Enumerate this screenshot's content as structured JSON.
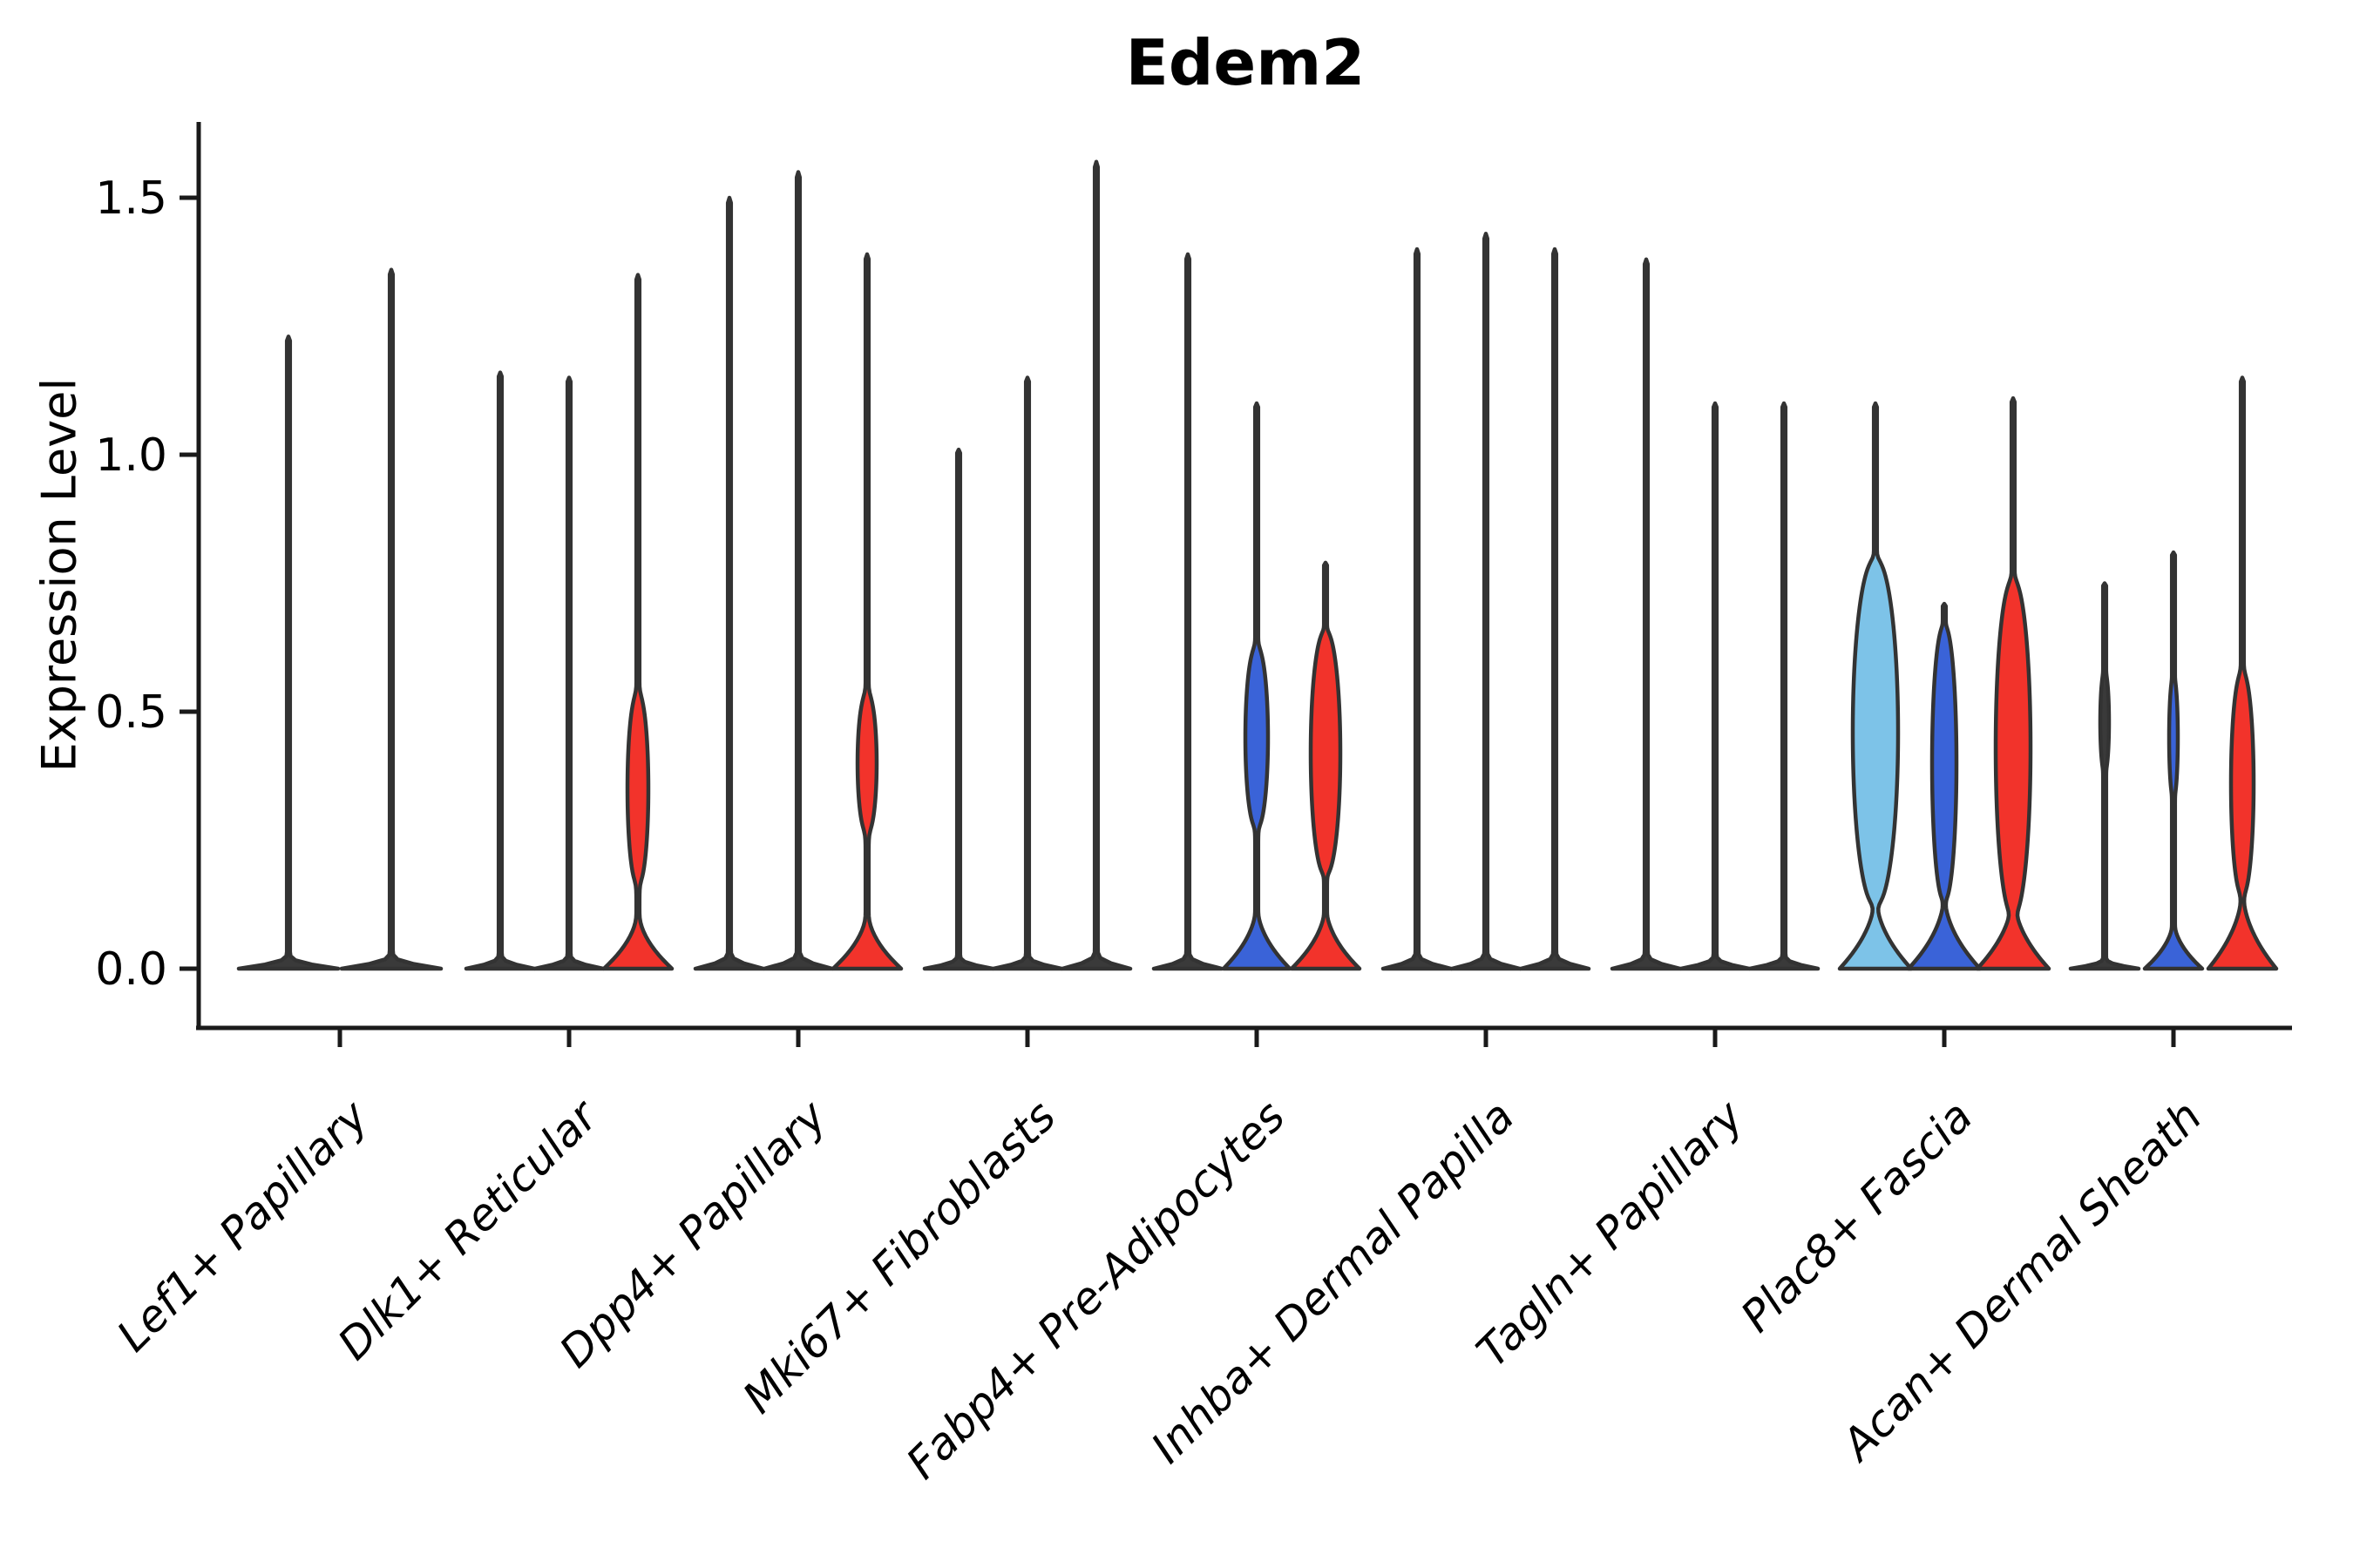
{
  "chart_data": {
    "type": "violin",
    "title": "Edem2",
    "ylabel": "Expression Level",
    "xlabel": "",
    "yticks": [
      0.0,
      0.5,
      1.0,
      1.5
    ],
    "ylim": [
      -0.06,
      1.65
    ],
    "grid": false,
    "legend": "none",
    "axis_color": "#1a1a1a",
    "outline_color": "#333333",
    "palette": {
      "light_blue": "#7dc3e8",
      "blue": "#3a63d8",
      "red": "#f2332b",
      "plain_dark": "#3a3a3a"
    },
    "categories": [
      "Lef1+ Papillary",
      "Dlk1+ Reticular",
      "Dpp4+ Papillary",
      "Mki67+ Fibroblasts",
      "Fabp4+ Pre-Adipocytes",
      "Inhba+ Dermal Papilla",
      "Tagln+ Papillary",
      "Plac8+ Fascia",
      "Acan+ Dermal Sheath"
    ],
    "groups": [
      {
        "category": "Lef1+ Papillary",
        "violins": [
          {
            "off": -59,
            "fill": "#3a3a3a",
            "top": 1.23,
            "blobs": [],
            "base": {
              "h": 0.015,
              "hw": 57
            }
          },
          {
            "off": 59,
            "fill": "#3a3a3a",
            "top": 1.36,
            "blobs": [],
            "base": {
              "h": 0.015,
              "hw": 57
            }
          }
        ]
      },
      {
        "category": "Dlk1+ Reticular",
        "violins": [
          {
            "off": -79,
            "fill": "#3a3a3a",
            "top": 1.16,
            "blobs": [],
            "base": {
              "h": 0.015,
              "hw": 39
            }
          },
          {
            "off": 0,
            "fill": "#3a3a3a",
            "top": 1.15,
            "blobs": [],
            "base": {
              "h": 0.015,
              "hw": 39
            }
          },
          {
            "off": 79,
            "fill": "#f2332b",
            "top": 1.35,
            "blobs": [
              {
                "c": 0.35,
                "r": 0.19,
                "hw": 12
              }
            ],
            "base": {
              "h": 0.12,
              "hw": 39
            }
          }
        ]
      },
      {
        "category": "Dpp4+ Papillary",
        "violins": [
          {
            "off": -79,
            "fill": "#3a3a3a",
            "top": 1.5,
            "blobs": [],
            "base": {
              "h": 0.015,
              "hw": 39
            }
          },
          {
            "off": 0,
            "fill": "#3a3a3a",
            "top": 1.55,
            "blobs": [],
            "base": {
              "h": 0.015,
              "hw": 39
            }
          },
          {
            "off": 79,
            "fill": "#f2332b",
            "top": 1.39,
            "blobs": [
              {
                "c": 0.4,
                "r": 0.14,
                "hw": 11
              }
            ],
            "base": {
              "h": 0.12,
              "hw": 39
            }
          }
        ]
      },
      {
        "category": "Mki67+ Fibroblasts",
        "violins": [
          {
            "off": -79,
            "fill": "#3a3a3a",
            "top": 1.01,
            "blobs": [],
            "base": {
              "h": 0.015,
              "hw": 39
            }
          },
          {
            "off": 0,
            "fill": "#3a3a3a",
            "top": 1.15,
            "blobs": [],
            "base": {
              "h": 0.015,
              "hw": 39
            }
          },
          {
            "off": 79,
            "fill": "#3a3a3a",
            "top": 1.57,
            "blobs": [],
            "base": {
              "h": 0.015,
              "hw": 39
            }
          }
        ]
      },
      {
        "category": "Fabp4+ Pre-Adipocytes",
        "violins": [
          {
            "off": -79,
            "fill": "#3a3a3a",
            "top": 1.39,
            "blobs": [],
            "base": {
              "h": 0.015,
              "hw": 39
            }
          },
          {
            "off": 0,
            "fill": "#3a63d8",
            "top": 1.1,
            "blobs": [
              {
                "c": 0.45,
                "r": 0.18,
                "hw": 13
              }
            ],
            "base": {
              "h": 0.13,
              "hw": 38
            }
          },
          {
            "off": 79,
            "fill": "#f2332b",
            "top": 0.79,
            "blobs": [
              {
                "c": 0.42,
                "r": 0.24,
                "hw": 17
              }
            ],
            "base": {
              "h": 0.13,
              "hw": 39
            }
          }
        ]
      },
      {
        "category": "Inhba+ Dermal Papilla",
        "violins": [
          {
            "off": -79,
            "fill": "#3a3a3a",
            "top": 1.4,
            "blobs": [],
            "base": {
              "h": 0.015,
              "hw": 39
            }
          },
          {
            "off": 0,
            "fill": "#3a3a3a",
            "top": 1.43,
            "blobs": [],
            "base": {
              "h": 0.015,
              "hw": 39
            }
          },
          {
            "off": 79,
            "fill": "#3a3a3a",
            "top": 1.4,
            "blobs": [],
            "base": {
              "h": 0.015,
              "hw": 39
            }
          }
        ]
      },
      {
        "category": "Tagln+ Papillary",
        "violins": [
          {
            "off": -79,
            "fill": "#3a3a3a",
            "top": 1.38,
            "blobs": [],
            "base": {
              "h": 0.015,
              "hw": 39
            }
          },
          {
            "off": 0,
            "fill": "#3a3a3a",
            "top": 1.1,
            "blobs": [],
            "base": {
              "h": 0.015,
              "hw": 39
            }
          },
          {
            "off": 79,
            "fill": "#3a3a3a",
            "top": 1.1,
            "blobs": [],
            "base": {
              "h": 0.015,
              "hw": 39
            }
          }
        ]
      },
      {
        "category": "Plac8+ Fascia",
        "violins": [
          {
            "off": -79,
            "fill": "#7dc3e8",
            "top": 1.1,
            "blobs": [
              {
                "c": 0.46,
                "r": 0.34,
                "hw": 26
              }
            ],
            "base": {
              "h": 0.15,
              "hw": 41
            }
          },
          {
            "off": 0,
            "fill": "#3a63d8",
            "top": 0.71,
            "blobs": [
              {
                "c": 0.4,
                "r": 0.27,
                "hw": 14
              }
            ],
            "base": {
              "h": 0.15,
              "hw": 41
            }
          },
          {
            "off": 79,
            "fill": "#f2332b",
            "top": 1.11,
            "blobs": [
              {
                "c": 0.43,
                "r": 0.33,
                "hw": 20
              }
            ],
            "base": {
              "h": 0.15,
              "hw": 41
            }
          }
        ]
      },
      {
        "category": "Acan+ Dermal Sheath",
        "violins": [
          {
            "off": -79,
            "fill": "#3a3a3a",
            "top": 0.75,
            "blobs": [
              {
                "c": 0.48,
                "r": 0.1,
                "hw": 5
              }
            ],
            "base": {
              "h": 0.015,
              "hw": 39
            }
          },
          {
            "off": 0,
            "fill": "#3a63d8",
            "top": 0.81,
            "blobs": [
              {
                "c": 0.45,
                "r": 0.12,
                "hw": 5
              }
            ],
            "base": {
              "h": 0.1,
              "hw": 33
            }
          },
          {
            "off": 79,
            "fill": "#f2332b",
            "top": 1.15,
            "blobs": [
              {
                "c": 0.36,
                "r": 0.22,
                "hw": 13
              }
            ],
            "base": {
              "h": 0.16,
              "hw": 39
            }
          }
        ]
      }
    ]
  }
}
